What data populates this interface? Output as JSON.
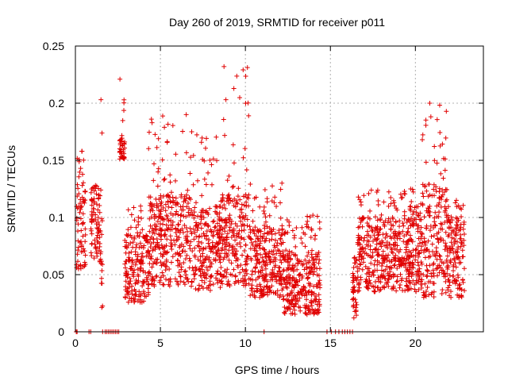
{
  "chart_data": {
    "type": "scatter",
    "title": "Day 260 of 2019, SRMTID for receiver p011",
    "xlabel": "GPS time / hours",
    "ylabel": "SRMTID / TECUs",
    "xlim": [
      0,
      24
    ],
    "ylim": [
      0,
      0.25
    ],
    "xticks": [
      0,
      5,
      10,
      15,
      20
    ],
    "yticks": [
      0,
      0.05,
      0.1,
      0.15,
      0.2,
      0.25
    ],
    "xtick_labels": [
      "0",
      "5",
      "10",
      "15",
      "20"
    ],
    "ytick_labels": [
      "0",
      "0.05",
      "0.1",
      "0.15",
      "0.2",
      "0.25"
    ],
    "grid": true,
    "marker": "+",
    "color": "#e00000",
    "point_count_estimate": 2600,
    "envelope_note": "Dense red '+' scatter; segments give time range (hours), typical band [low, high] and peak value.",
    "segments": [
      {
        "t": [
          0.05,
          0.6
        ],
        "low": 0.05,
        "high": 0.13,
        "peak": 0.158
      },
      {
        "t": [
          0.9,
          1.5
        ],
        "low": 0.06,
        "high": 0.12,
        "peak": 0.128
      },
      {
        "t": [
          1.5,
          1.6
        ],
        "low": 0.02,
        "high": 0.1,
        "peak": 0.203
      },
      {
        "t": [
          2.6,
          2.9
        ],
        "low": 0.15,
        "high": 0.17,
        "peak": 0.221
      },
      {
        "t": [
          2.9,
          4.3
        ],
        "low": 0.025,
        "high": 0.085,
        "peak": 0.11
      },
      {
        "t": [
          4.3,
          6.8
        ],
        "low": 0.04,
        "high": 0.12,
        "peak": 0.19
      },
      {
        "t": [
          6.8,
          8.6
        ],
        "low": 0.035,
        "high": 0.11,
        "peak": 0.175
      },
      {
        "t": [
          8.6,
          10.2
        ],
        "low": 0.04,
        "high": 0.12,
        "peak": 0.232
      },
      {
        "t": [
          10.2,
          12.2
        ],
        "low": 0.03,
        "high": 0.09,
        "peak": 0.13
      },
      {
        "t": [
          12.2,
          14.4
        ],
        "low": 0.015,
        "high": 0.07,
        "peak": 0.102
      },
      {
        "t": [
          16.3,
          16.6
        ],
        "low": 0.01,
        "high": 0.06,
        "peak": 0.065
      },
      {
        "t": [
          16.6,
          20.4
        ],
        "low": 0.035,
        "high": 0.1,
        "peak": 0.125
      },
      {
        "t": [
          20.4,
          21.9
        ],
        "low": 0.03,
        "high": 0.13,
        "peak": 0.2
      },
      {
        "t": [
          21.9,
          22.9
        ],
        "low": 0.03,
        "high": 0.1,
        "peak": 0.115
      }
    ],
    "zero_values_at_hours": [
      0.05,
      0.1,
      0.8,
      0.9,
      1.6,
      1.75,
      1.85,
      1.95,
      2.05,
      2.15,
      2.25,
      2.35,
      2.45,
      2.55,
      11.1,
      14.8,
      15.05,
      15.3,
      15.5,
      15.7,
      15.85,
      16.0,
      16.15,
      16.3
    ]
  }
}
